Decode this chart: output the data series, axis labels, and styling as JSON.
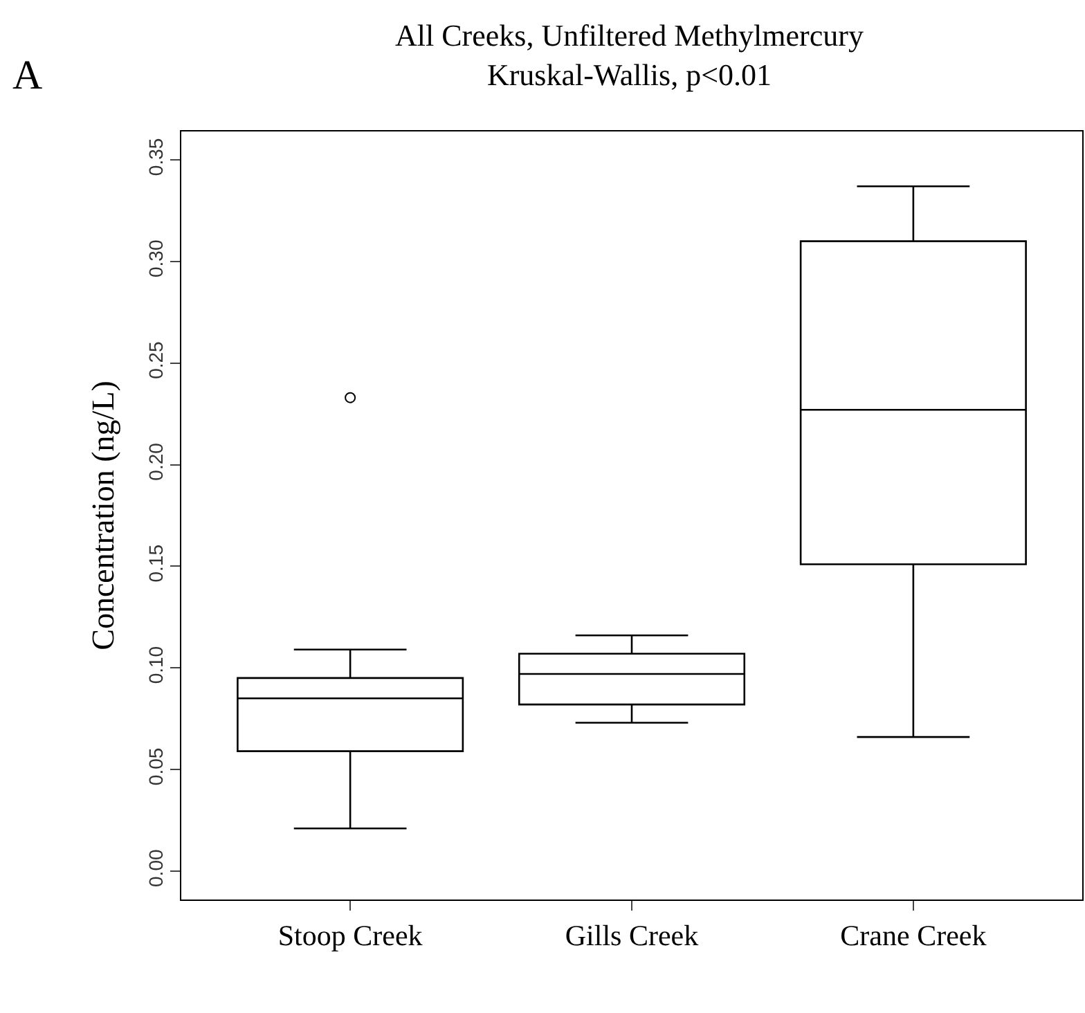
{
  "chart_data": {
    "type": "box",
    "title": "All Creeks, Unfiltered Methylmercury",
    "subtitle": "Kruskal-Wallis, p<0.01",
    "ylabel": "Concentration (ng/L)",
    "annotations": [
      "A"
    ],
    "categories": [
      "Stoop Creek",
      "Gills Creek",
      "Crane Creek"
    ],
    "boxes": [
      {
        "low": 0.021,
        "q1": 0.059,
        "median": 0.085,
        "q3": 0.095,
        "high": 0.109,
        "outliers": [
          0.233
        ]
      },
      {
        "low": 0.073,
        "q1": 0.082,
        "median": 0.097,
        "q3": 0.107,
        "high": 0.116
      },
      {
        "low": 0.066,
        "q1": 0.151,
        "median": 0.227,
        "q3": 0.31,
        "high": 0.337
      }
    ],
    "color": "#000000",
    "ylim": [
      -0.014,
      0.364
    ],
    "yticks": [
      {
        "value": 0,
        "label": "0.00"
      },
      0.05,
      {
        "value": 0.1,
        "label": "0.10"
      },
      0.15,
      {
        "value": 0.2,
        "label": "0.20"
      },
      0.25,
      {
        "value": 0.3,
        "label": "0.30"
      },
      0.35
    ]
  }
}
